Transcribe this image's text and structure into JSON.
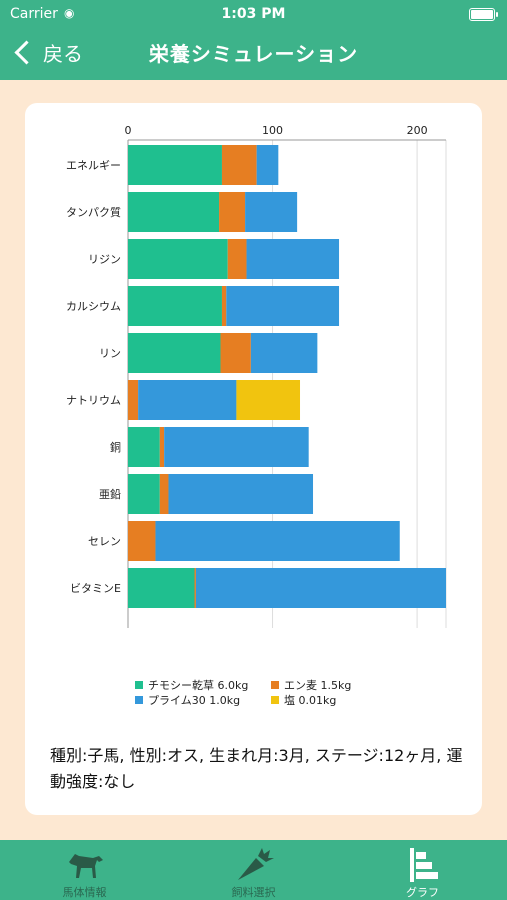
{
  "status": {
    "carrier": "Carrier",
    "time": "1:03 PM"
  },
  "nav": {
    "back_label": "戻る",
    "title": "栄養シミュレーション"
  },
  "colors": {
    "header": "#3db38a",
    "background": "#fde8d2",
    "series": [
      "#1fbf8f",
      "#e67e22",
      "#3498db",
      "#f1c40f"
    ]
  },
  "chart_data": {
    "type": "bar",
    "orientation": "horizontal",
    "stacked": true,
    "x_ticks": [
      0,
      100,
      200
    ],
    "xlim": [
      0,
      220
    ],
    "categories": [
      "エネルギー",
      "タンパク質",
      "リジン",
      "カルシウム",
      "リン",
      "ナトリウム",
      "銅",
      "亜鉛",
      "セレン",
      "ビタミンE"
    ],
    "series": [
      {
        "name": "チモシー乾草 6.0kg",
        "values": [
          65,
          63,
          69,
          65,
          64,
          0,
          22,
          22,
          0,
          46
        ]
      },
      {
        "name": "エン麦 1.5kg",
        "values": [
          24,
          18,
          13,
          3,
          21,
          7,
          3,
          6,
          19,
          1
        ]
      },
      {
        "name": "プライム30 1.0kg",
        "values": [
          15,
          36,
          64,
          78,
          46,
          68,
          100,
          100,
          169,
          173
        ]
      },
      {
        "name": "塩 0.01kg",
        "values": [
          0,
          0,
          0,
          0,
          0,
          44,
          0,
          0,
          0,
          0
        ]
      }
    ],
    "legend_position": "bottom",
    "grid": true
  },
  "info_text": "種別:子馬, 性別:オス, 生まれ月:3月, ステージ:12ヶ月, 運動強度:なし",
  "tabs": [
    {
      "label": "馬体情報",
      "icon": "horse-icon",
      "active": false
    },
    {
      "label": "飼料選択",
      "icon": "carrot-icon",
      "active": false
    },
    {
      "label": "グラフ",
      "icon": "chart-icon",
      "active": true
    }
  ]
}
